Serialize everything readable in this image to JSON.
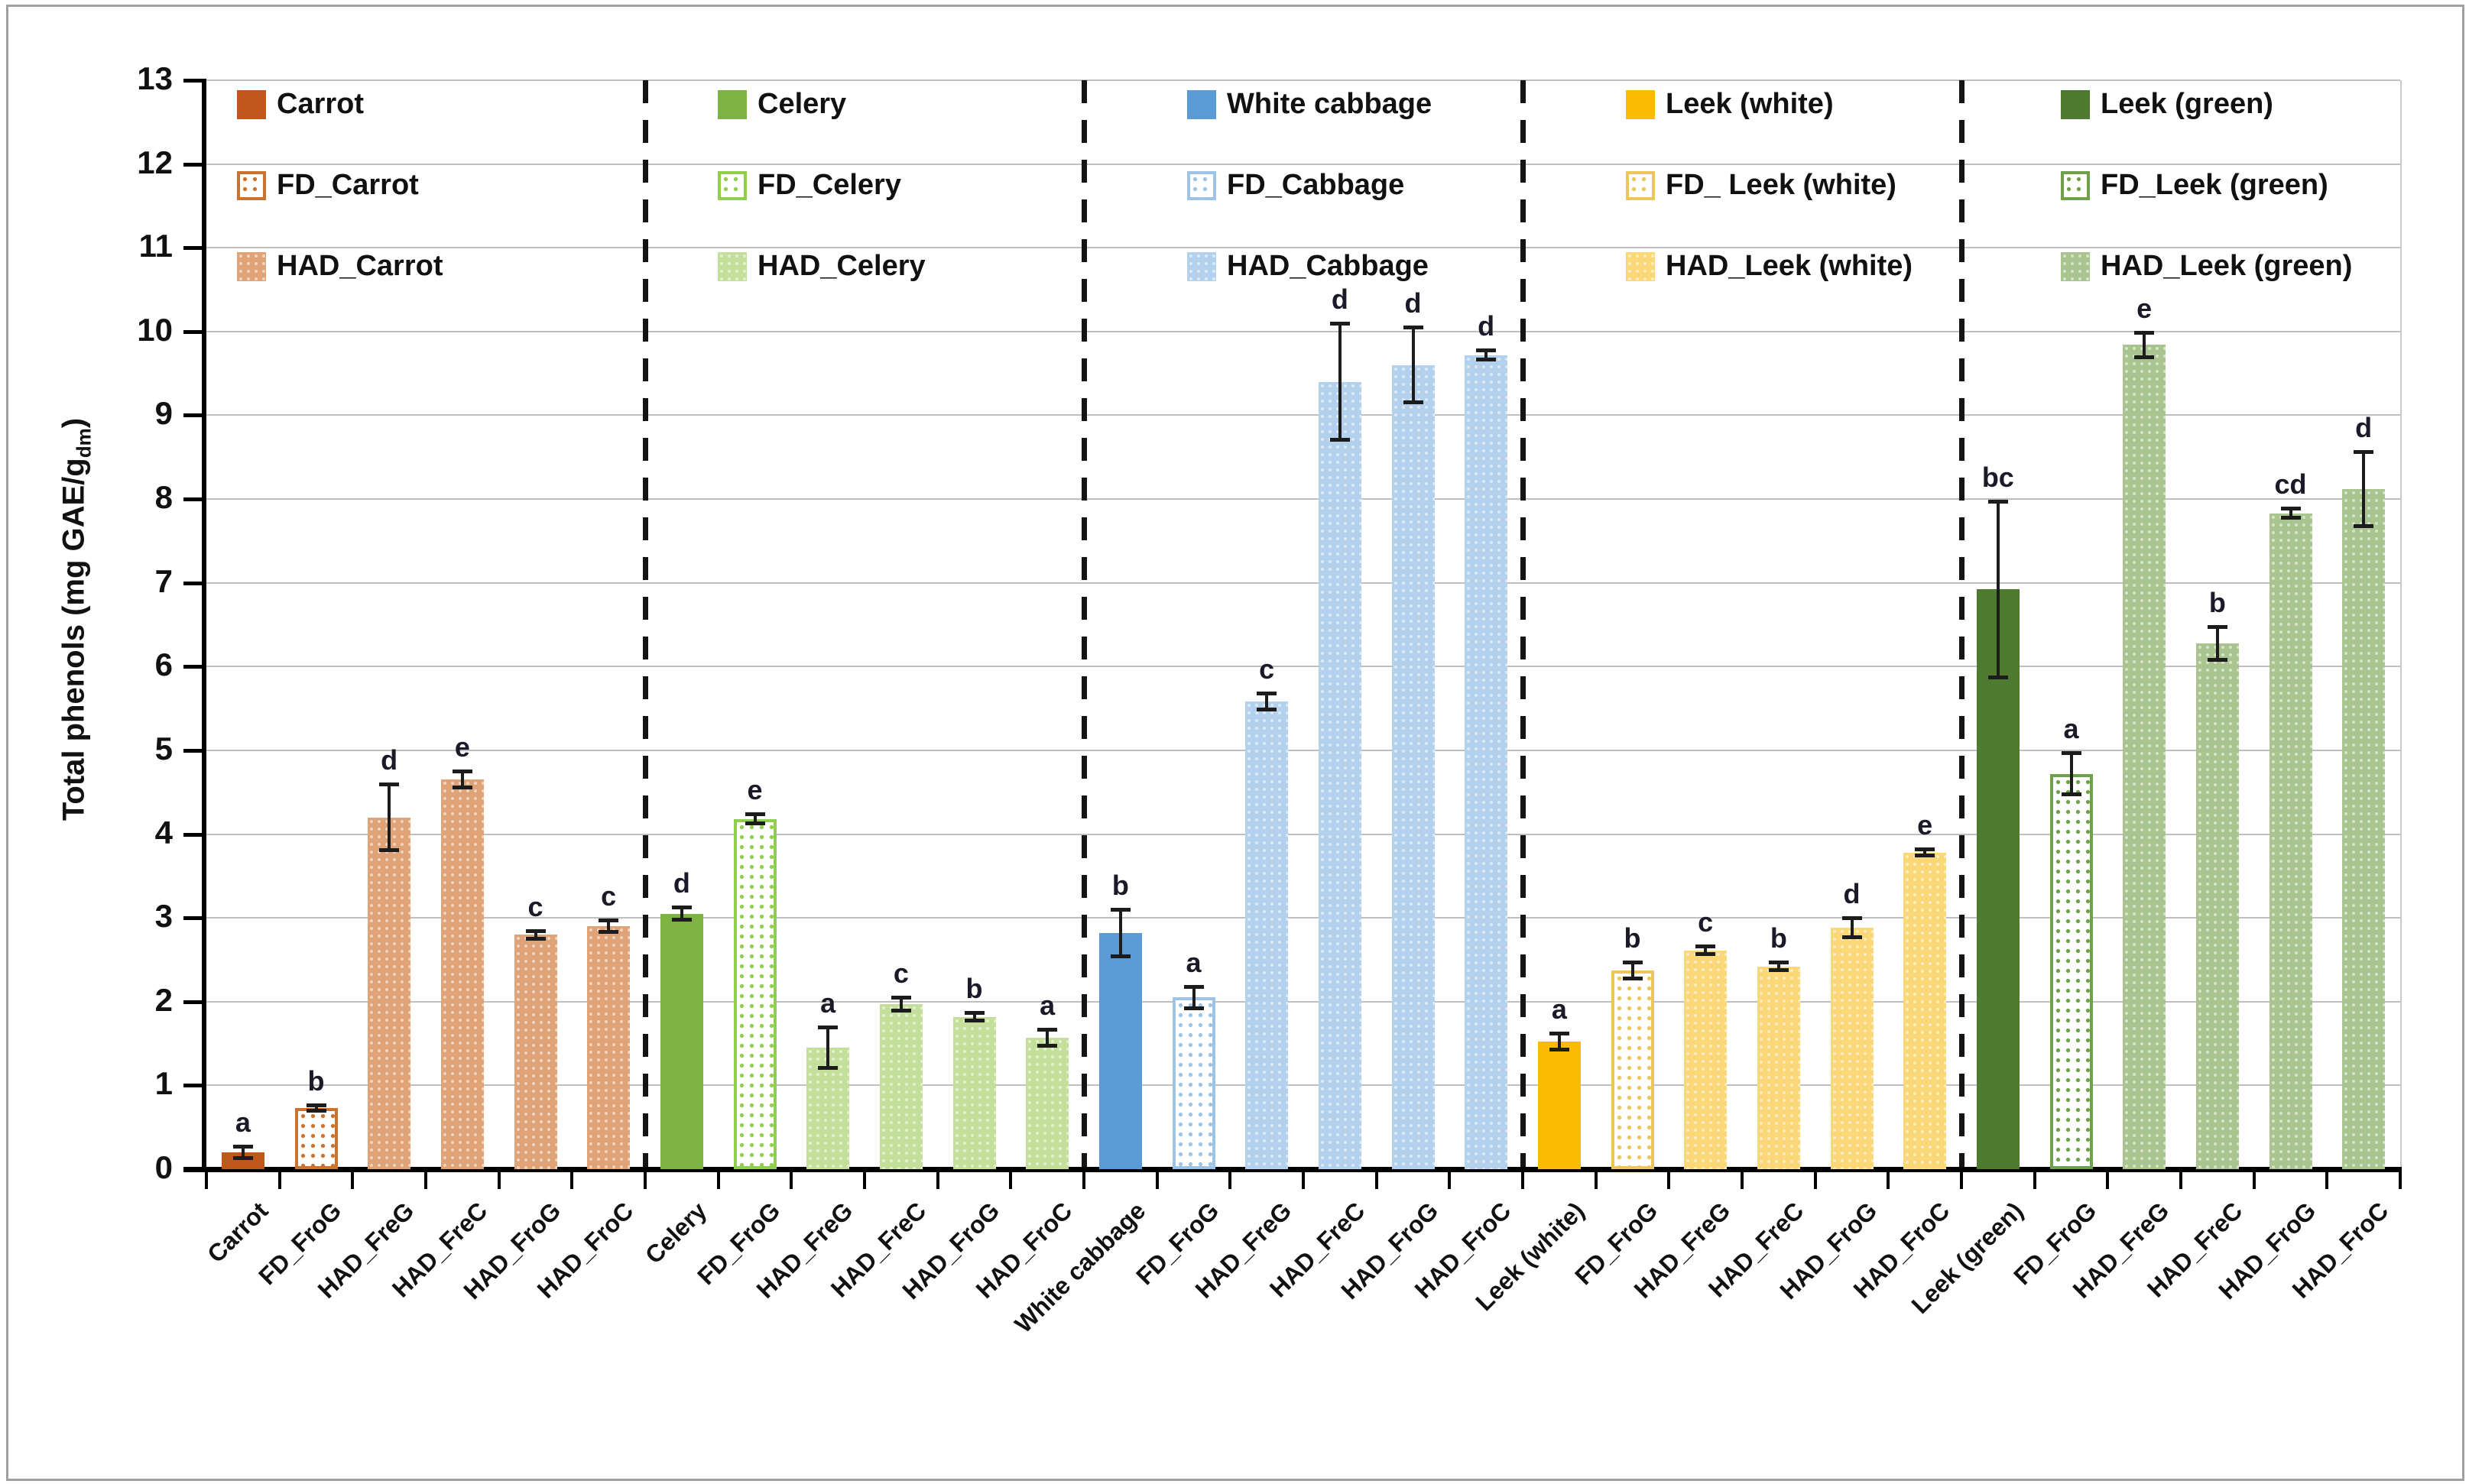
{
  "figure": {
    "background": "#ffffff",
    "border_color": "#a0a0a0"
  },
  "y_axis": {
    "title_main": "Total phenols (mg GAE/g",
    "title_sub": "dm",
    "title_close": ")",
    "min": 0,
    "max": 13,
    "tick_labels": [
      "0",
      "1",
      "2",
      "3",
      "4",
      "5",
      "6",
      "7",
      "8",
      "9",
      "10",
      "11",
      "12",
      "13"
    ]
  },
  "chart_data": {
    "type": "bar",
    "title": "",
    "ylabel": "Total phenols (mg GAE/g dm)",
    "ylim": [
      0,
      13
    ],
    "grid": true,
    "legend_position": "top-inside, one column per vegetable group",
    "group_separator_style": "vertical black dashed lines",
    "groups": [
      {
        "name": "Carrot",
        "legend": [
          "Carrot",
          "FD_Carrot",
          "HAD_Carrot"
        ],
        "colors": {
          "solid": "#c0571a",
          "accent": "#c9732f",
          "light": "#dfa377"
        },
        "bars": [
          {
            "label": "Carrot",
            "style": "solid",
            "value": 0.2,
            "error": 0.07,
            "letter": "a"
          },
          {
            "label": "FD_FroG",
            "style": "dotted",
            "value": 0.73,
            "error": 0.04,
            "letter": "b"
          },
          {
            "label": "HAD_FreG",
            "style": "textured",
            "value": 4.2,
            "error": 0.4,
            "letter": "d"
          },
          {
            "label": "HAD_FreC",
            "style": "textured",
            "value": 4.65,
            "error": 0.1,
            "letter": "e"
          },
          {
            "label": "HAD_FroG",
            "style": "textured",
            "value": 2.8,
            "error": 0.05,
            "letter": "c"
          },
          {
            "label": "HAD_FroC",
            "style": "textured",
            "value": 2.9,
            "error": 0.07,
            "letter": "c"
          }
        ]
      },
      {
        "name": "Celery",
        "legend": [
          "Celery",
          "FD_Celery",
          "HAD_Celery"
        ],
        "colors": {
          "solid": "#7cb342",
          "accent": "#8fce4e",
          "light": "#c3df9a"
        },
        "bars": [
          {
            "label": "Celery",
            "style": "solid",
            "value": 3.05,
            "error": 0.08,
            "letter": "d"
          },
          {
            "label": "FD_FroG",
            "style": "dotted",
            "value": 4.18,
            "error": 0.06,
            "letter": "e"
          },
          {
            "label": "HAD_FreG",
            "style": "textured",
            "value": 1.45,
            "error": 0.25,
            "letter": "a"
          },
          {
            "label": "HAD_FreC",
            "style": "textured",
            "value": 1.97,
            "error": 0.08,
            "letter": "c"
          },
          {
            "label": "HAD_FroG",
            "style": "textured",
            "value": 1.82,
            "error": 0.05,
            "letter": "b"
          },
          {
            "label": "HAD_FroC",
            "style": "textured",
            "value": 1.57,
            "error": 0.1,
            "letter": "a"
          }
        ]
      },
      {
        "name": "White cabbage",
        "legend": [
          "White cabbage",
          "FD_Cabbage",
          "HAD_Cabbage"
        ],
        "colors": {
          "solid": "#5b9bd5",
          "accent": "#9dc3e6",
          "light": "#b3d1ec"
        },
        "bars": [
          {
            "label": "White cabbage",
            "style": "solid",
            "value": 2.82,
            "error": 0.28,
            "letter": "b"
          },
          {
            "label": "FD_FroG",
            "style": "dotted",
            "value": 2.05,
            "error": 0.13,
            "letter": "a"
          },
          {
            "label": "HAD_FreG",
            "style": "textured",
            "value": 5.58,
            "error": 0.1,
            "letter": "c"
          },
          {
            "label": "HAD_FreC",
            "style": "textured",
            "value": 9.4,
            "error": 0.7,
            "letter": "d"
          },
          {
            "label": "HAD_FroG",
            "style": "textured",
            "value": 9.6,
            "error": 0.45,
            "letter": "d"
          },
          {
            "label": "HAD_FroC",
            "style": "textured",
            "value": 9.72,
            "error": 0.06,
            "letter": "d"
          }
        ]
      },
      {
        "name": "Leek (white)",
        "legend": [
          "Leek (white)",
          "FD_ Leek (white)",
          "HAD_Leek (white)"
        ],
        "colors": {
          "solid": "#fbbb02",
          "accent": "#edc558",
          "light": "#fad878"
        },
        "bars": [
          {
            "label": "Leek (white)",
            "style": "solid",
            "value": 1.52,
            "error": 0.1,
            "letter": "a"
          },
          {
            "label": "FD_FroG",
            "style": "dotted",
            "value": 2.37,
            "error": 0.1,
            "letter": "b"
          },
          {
            "label": "HAD_FreG",
            "style": "textured",
            "value": 2.61,
            "error": 0.05,
            "letter": "c"
          },
          {
            "label": "HAD_FreC",
            "style": "textured",
            "value": 2.42,
            "error": 0.05,
            "letter": "b"
          },
          {
            "label": "HAD_FroG",
            "style": "textured",
            "value": 2.88,
            "error": 0.12,
            "letter": "d"
          },
          {
            "label": "HAD_FroC",
            "style": "textured",
            "value": 3.78,
            "error": 0.04,
            "letter": "e"
          }
        ]
      },
      {
        "name": "Leek (green)",
        "legend": [
          "Leek (green)",
          "FD_Leek (green)",
          "HAD_Leek (green)"
        ],
        "colors": {
          "solid": "#4f7b31",
          "accent": "#6fa04a",
          "light": "#a9c48e"
        },
        "bars": [
          {
            "label": "Leek (green)",
            "style": "solid",
            "value": 6.92,
            "error": 1.05,
            "letter": "bc"
          },
          {
            "label": "FD_FroG",
            "style": "dotted",
            "value": 4.72,
            "error": 0.25,
            "letter": "a"
          },
          {
            "label": "HAD_FreG",
            "style": "textured",
            "value": 9.84,
            "error": 0.15,
            "letter": "e"
          },
          {
            "label": "HAD_FreC",
            "style": "textured",
            "value": 6.28,
            "error": 0.2,
            "letter": "b"
          },
          {
            "label": "HAD_FroG",
            "style": "textured",
            "value": 7.83,
            "error": 0.06,
            "letter": "cd"
          },
          {
            "label": "HAD_FroC",
            "style": "textured",
            "value": 8.12,
            "error": 0.45,
            "letter": "d"
          }
        ]
      }
    ]
  }
}
